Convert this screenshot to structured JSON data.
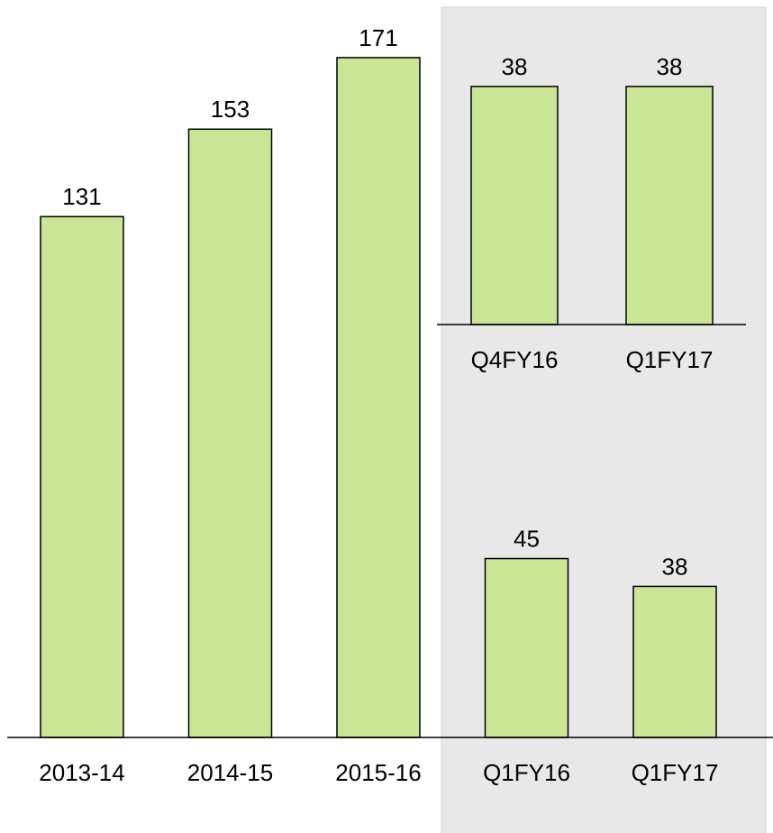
{
  "chart_data": [
    {
      "type": "bar",
      "categories": [
        "2013-14",
        "2014-15",
        "2015-16",
        "Q1FY16",
        "Q1FY17"
      ],
      "values": [
        131,
        153,
        171,
        45,
        38
      ],
      "color": "#c9e595"
    },
    {
      "type": "bar",
      "categories": [
        "Q4FY16",
        "Q1FY17"
      ],
      "values": [
        38,
        38
      ],
      "color": "#c9e595"
    }
  ]
}
